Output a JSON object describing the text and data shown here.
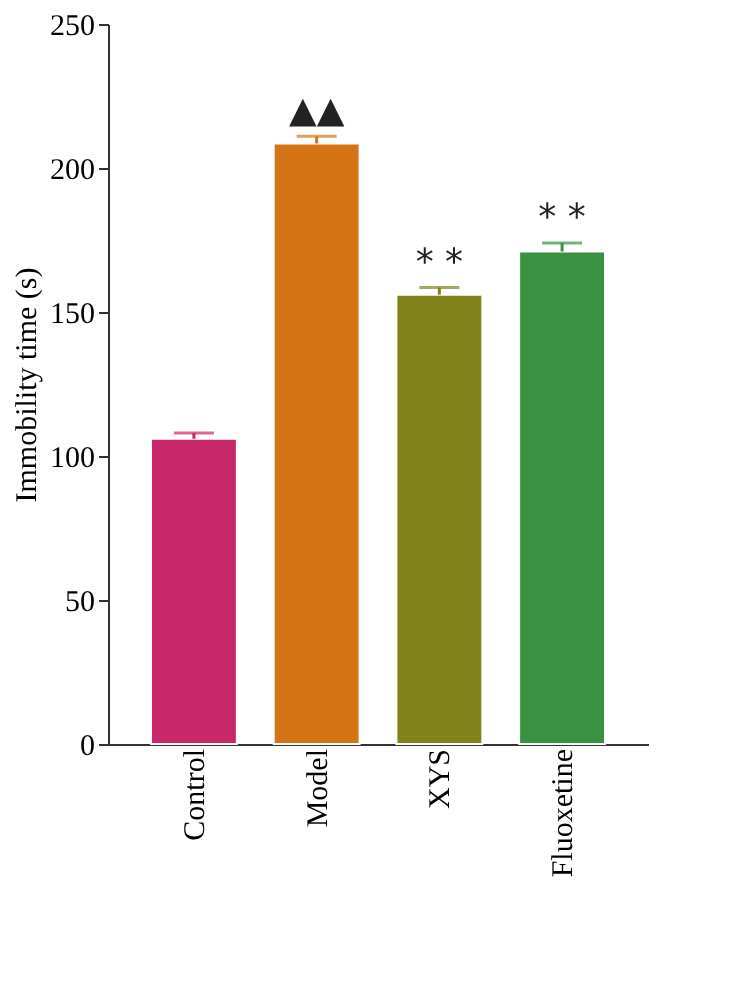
{
  "chart_data": {
    "type": "bar",
    "ylabel": "Immobility time (s)",
    "categories": [
      "Control",
      "Model",
      "XYS",
      "Fluoxetine"
    ],
    "values": [
      106,
      208.5,
      156,
      171
    ],
    "colors": [
      "#c8276a",
      "#d47417",
      "#82821b",
      "#3a9141"
    ],
    "errors": [
      2,
      2.5,
      2.5,
      3
    ],
    "ylim": [
      0,
      250
    ],
    "yticks": [
      0,
      50,
      100,
      150,
      200,
      250
    ],
    "grid": false,
    "annotations": [
      {
        "text": "▲▲",
        "x": "Model",
        "y": 211
      },
      {
        "text": "* *",
        "x": "XYS",
        "y": 158.5
      },
      {
        "text": "* *",
        "x": "Fluoxetine",
        "y": 174
      }
    ]
  }
}
